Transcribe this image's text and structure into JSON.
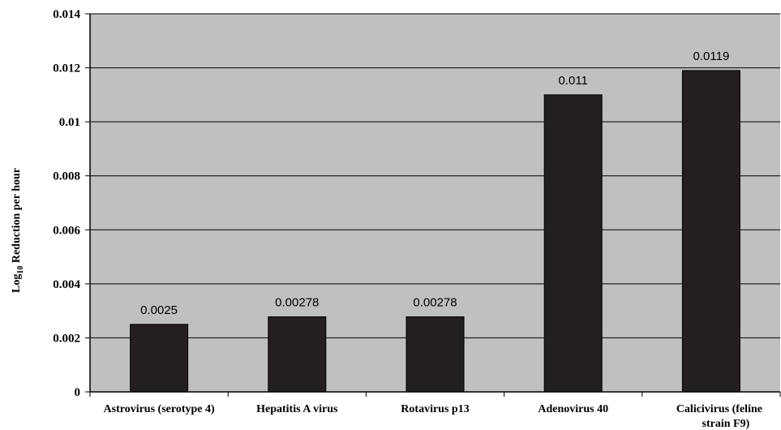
{
  "chart_data": {
    "type": "bar",
    "title": "",
    "xlabel": "",
    "ylabel": {
      "main": "Log",
      "sub": "10",
      "rest": " Reduction per hour"
    },
    "categories": [
      [
        "Astrovirus (serotype 4)"
      ],
      [
        "Hepatitis A virus"
      ],
      [
        "Rotavirus p13"
      ],
      [
        "Adenovirus 40"
      ],
      [
        "Calicivirus (feline",
        "strain F9)"
      ]
    ],
    "values": [
      0.0025,
      0.00278,
      0.00278,
      0.011,
      0.0119
    ],
    "data_labels": [
      "0.0025",
      "0.00278",
      "0.00278",
      "0.011",
      "0.0119"
    ],
    "ylim": [
      0,
      0.014
    ],
    "yticks": [
      0,
      0.002,
      0.004,
      0.006,
      0.008,
      0.01,
      0.012,
      0.014
    ],
    "ytick_labels": [
      "0",
      "0.002",
      "0.004",
      "0.006",
      "0.008",
      "0.01",
      "0.012",
      "0.014"
    ],
    "grid": true,
    "legend": "none",
    "colors": {
      "plot_background": "#c0c0c0",
      "bar": "#231f20",
      "grid": "#000000"
    }
  }
}
